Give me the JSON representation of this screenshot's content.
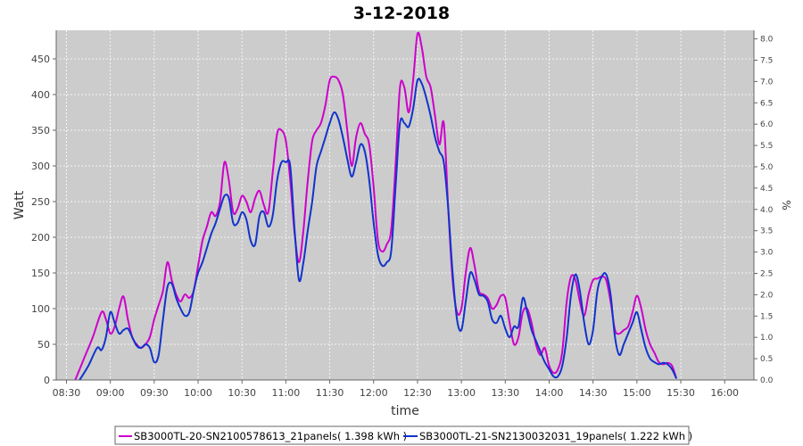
{
  "chart_data": {
    "type": "line",
    "title": "3-12-2018",
    "xlabel": "time",
    "ylabel": "Watt",
    "y2label": "%",
    "x_ticks": [
      "08:30",
      "09:00",
      "09:30",
      "10:00",
      "10:30",
      "11:00",
      "11:30",
      "12:00",
      "12:30",
      "13:00",
      "13:30",
      "14:00",
      "14:30",
      "15:00",
      "15:30",
      "16:00"
    ],
    "y_ticks": [
      "0",
      "50",
      "100",
      "150",
      "200",
      "250",
      "300",
      "350",
      "400",
      "450"
    ],
    "y2_ticks": [
      "0.0",
      "0.5",
      "1.0",
      "1.5",
      "2.0",
      "2.5",
      "3.0",
      "3.5",
      "4.0",
      "4.5",
      "5.0",
      "5.5",
      "6.0",
      "6.5",
      "7.0",
      "7.5",
      "8.0"
    ],
    "xlim": [
      "08:23",
      "16:20"
    ],
    "ylim": [
      0,
      490
    ],
    "y2lim": [
      0,
      8.2
    ],
    "grid": true,
    "legend_position": "bottom",
    "series": [
      {
        "name": "SB3000TL-20-SN2100578613_21panels( 1.398 kWh )",
        "color": "#cc00cc",
        "points": [
          [
            "08:36",
            0
          ],
          [
            "08:42",
            30
          ],
          [
            "08:48",
            60
          ],
          [
            "08:54",
            95
          ],
          [
            "08:57",
            85
          ],
          [
            "09:00",
            65
          ],
          [
            "09:03",
            75
          ],
          [
            "09:06",
            100
          ],
          [
            "09:09",
            117
          ],
          [
            "09:12",
            85
          ],
          [
            "09:15",
            60
          ],
          [
            "09:18",
            50
          ],
          [
            "09:21",
            45
          ],
          [
            "09:24",
            50
          ],
          [
            "09:27",
            60
          ],
          [
            "09:30",
            85
          ],
          [
            "09:33",
            105
          ],
          [
            "09:36",
            125
          ],
          [
            "09:39",
            165
          ],
          [
            "09:42",
            140
          ],
          [
            "09:45",
            120
          ],
          [
            "09:48",
            110
          ],
          [
            "09:51",
            120
          ],
          [
            "09:54",
            115
          ],
          [
            "09:57",
            125
          ],
          [
            "10:00",
            160
          ],
          [
            "10:03",
            195
          ],
          [
            "10:06",
            215
          ],
          [
            "10:09",
            235
          ],
          [
            "10:12",
            230
          ],
          [
            "10:15",
            250
          ],
          [
            "10:18",
            305
          ],
          [
            "10:21",
            280
          ],
          [
            "10:24",
            235
          ],
          [
            "10:27",
            240
          ],
          [
            "10:30",
            258
          ],
          [
            "10:33",
            250
          ],
          [
            "10:36",
            235
          ],
          [
            "10:39",
            255
          ],
          [
            "10:42",
            265
          ],
          [
            "10:45",
            245
          ],
          [
            "10:48",
            235
          ],
          [
            "10:51",
            290
          ],
          [
            "10:54",
            345
          ],
          [
            "10:57",
            350
          ],
          [
            "11:00",
            335
          ],
          [
            "11:03",
            280
          ],
          [
            "11:06",
            205
          ],
          [
            "11:09",
            165
          ],
          [
            "11:12",
            210
          ],
          [
            "11:15",
            280
          ],
          [
            "11:18",
            335
          ],
          [
            "11:21",
            350
          ],
          [
            "11:24",
            360
          ],
          [
            "11:27",
            385
          ],
          [
            "11:30",
            420
          ],
          [
            "11:33",
            425
          ],
          [
            "11:36",
            420
          ],
          [
            "11:39",
            400
          ],
          [
            "11:42",
            350
          ],
          [
            "11:45",
            300
          ],
          [
            "11:48",
            340
          ],
          [
            "11:51",
            360
          ],
          [
            "11:54",
            345
          ],
          [
            "11:57",
            330
          ],
          [
            "12:00",
            270
          ],
          [
            "12:03",
            195
          ],
          [
            "12:06",
            180
          ],
          [
            "12:09",
            190
          ],
          [
            "12:12",
            210
          ],
          [
            "12:15",
            300
          ],
          [
            "12:18",
            410
          ],
          [
            "12:21",
            410
          ],
          [
            "12:24",
            375
          ],
          [
            "12:27",
            420
          ],
          [
            "12:30",
            485
          ],
          [
            "12:33",
            465
          ],
          [
            "12:36",
            425
          ],
          [
            "12:39",
            410
          ],
          [
            "12:42",
            370
          ],
          [
            "12:45",
            330
          ],
          [
            "12:48",
            360
          ],
          [
            "12:51",
            240
          ],
          [
            "12:54",
            140
          ],
          [
            "12:57",
            95
          ],
          [
            "13:00",
            100
          ],
          [
            "13:03",
            150
          ],
          [
            "13:06",
            185
          ],
          [
            "13:09",
            160
          ],
          [
            "13:12",
            125
          ],
          [
            "13:15",
            120
          ],
          [
            "13:18",
            115
          ],
          [
            "13:21",
            100
          ],
          [
            "13:24",
            105
          ],
          [
            "13:27",
            118
          ],
          [
            "13:30",
            115
          ],
          [
            "13:33",
            80
          ],
          [
            "13:36",
            50
          ],
          [
            "13:39",
            60
          ],
          [
            "13:42",
            95
          ],
          [
            "13:45",
            100
          ],
          [
            "13:48",
            80
          ],
          [
            "13:51",
            50
          ],
          [
            "13:54",
            35
          ],
          [
            "13:57",
            45
          ],
          [
            "14:00",
            20
          ],
          [
            "14:03",
            10
          ],
          [
            "14:06",
            15
          ],
          [
            "14:09",
            40
          ],
          [
            "14:12",
            110
          ],
          [
            "14:15",
            145
          ],
          [
            "14:18",
            140
          ],
          [
            "14:21",
            110
          ],
          [
            "14:24",
            90
          ],
          [
            "14:27",
            120
          ],
          [
            "14:30",
            140
          ],
          [
            "14:33",
            142
          ],
          [
            "14:36",
            145
          ],
          [
            "14:39",
            140
          ],
          [
            "14:42",
            110
          ],
          [
            "14:45",
            70
          ],
          [
            "14:48",
            65
          ],
          [
            "14:51",
            70
          ],
          [
            "14:54",
            75
          ],
          [
            "14:57",
            95
          ],
          [
            "15:00",
            118
          ],
          [
            "15:03",
            100
          ],
          [
            "15:06",
            70
          ],
          [
            "15:09",
            50
          ],
          [
            "15:12",
            38
          ],
          [
            "15:15",
            25
          ],
          [
            "15:18",
            22
          ],
          [
            "15:21",
            24
          ],
          [
            "15:24",
            20
          ],
          [
            "15:27",
            2
          ]
        ]
      },
      {
        "name": "SB3000TL-21-SN2130032031_19panels( 1.222 kWh )",
        "color": "#1133cc",
        "points": [
          [
            "08:39",
            0
          ],
          [
            "08:45",
            20
          ],
          [
            "08:51",
            45
          ],
          [
            "08:54",
            42
          ],
          [
            "08:57",
            60
          ],
          [
            "09:00",
            95
          ],
          [
            "09:03",
            80
          ],
          [
            "09:06",
            65
          ],
          [
            "09:09",
            70
          ],
          [
            "09:12",
            72
          ],
          [
            "09:15",
            60
          ],
          [
            "09:18",
            48
          ],
          [
            "09:21",
            45
          ],
          [
            "09:24",
            50
          ],
          [
            "09:27",
            45
          ],
          [
            "09:30",
            25
          ],
          [
            "09:33",
            35
          ],
          [
            "09:36",
            85
          ],
          [
            "09:39",
            130
          ],
          [
            "09:42",
            135
          ],
          [
            "09:45",
            115
          ],
          [
            "09:48",
            100
          ],
          [
            "09:51",
            90
          ],
          [
            "09:54",
            95
          ],
          [
            "09:57",
            125
          ],
          [
            "10:00",
            150
          ],
          [
            "10:03",
            165
          ],
          [
            "10:06",
            185
          ],
          [
            "10:09",
            205
          ],
          [
            "10:12",
            220
          ],
          [
            "10:15",
            240
          ],
          [
            "10:18",
            258
          ],
          [
            "10:21",
            255
          ],
          [
            "10:24",
            220
          ],
          [
            "10:27",
            220
          ],
          [
            "10:30",
            235
          ],
          [
            "10:33",
            225
          ],
          [
            "10:36",
            195
          ],
          [
            "10:39",
            190
          ],
          [
            "10:42",
            230
          ],
          [
            "10:45",
            235
          ],
          [
            "10:48",
            215
          ],
          [
            "10:51",
            230
          ],
          [
            "10:54",
            280
          ],
          [
            "10:57",
            305
          ],
          [
            "11:00",
            305
          ],
          [
            "11:03",
            300
          ],
          [
            "11:06",
            210
          ],
          [
            "11:09",
            140
          ],
          [
            "11:12",
            165
          ],
          [
            "11:15",
            210
          ],
          [
            "11:18",
            250
          ],
          [
            "11:21",
            300
          ],
          [
            "11:24",
            320
          ],
          [
            "11:27",
            340
          ],
          [
            "11:30",
            360
          ],
          [
            "11:33",
            375
          ],
          [
            "11:36",
            365
          ],
          [
            "11:39",
            340
          ],
          [
            "11:42",
            310
          ],
          [
            "11:45",
            285
          ],
          [
            "11:48",
            305
          ],
          [
            "11:51",
            330
          ],
          [
            "11:54",
            320
          ],
          [
            "11:57",
            280
          ],
          [
            "12:00",
            220
          ],
          [
            "12:03",
            175
          ],
          [
            "12:06",
            160
          ],
          [
            "12:09",
            165
          ],
          [
            "12:12",
            180
          ],
          [
            "12:15",
            270
          ],
          [
            "12:18",
            360
          ],
          [
            "12:21",
            360
          ],
          [
            "12:24",
            355
          ],
          [
            "12:27",
            380
          ],
          [
            "12:30",
            420
          ],
          [
            "12:33",
            415
          ],
          [
            "12:36",
            395
          ],
          [
            "12:39",
            370
          ],
          [
            "12:42",
            340
          ],
          [
            "12:45",
            320
          ],
          [
            "12:48",
            305
          ],
          [
            "12:51",
            240
          ],
          [
            "12:54",
            150
          ],
          [
            "12:57",
            85
          ],
          [
            "13:00",
            70
          ],
          [
            "13:03",
            110
          ],
          [
            "13:06",
            150
          ],
          [
            "13:09",
            140
          ],
          [
            "13:12",
            120
          ],
          [
            "13:15",
            118
          ],
          [
            "13:18",
            110
          ],
          [
            "13:21",
            85
          ],
          [
            "13:24",
            80
          ],
          [
            "13:27",
            90
          ],
          [
            "13:30",
            72
          ],
          [
            "13:33",
            60
          ],
          [
            "13:36",
            75
          ],
          [
            "13:39",
            75
          ],
          [
            "13:42",
            115
          ],
          [
            "13:45",
            95
          ],
          [
            "13:48",
            70
          ],
          [
            "13:51",
            55
          ],
          [
            "13:54",
            40
          ],
          [
            "13:57",
            25
          ],
          [
            "14:00",
            15
          ],
          [
            "14:03",
            5
          ],
          [
            "14:06",
            5
          ],
          [
            "14:09",
            20
          ],
          [
            "14:12",
            60
          ],
          [
            "14:15",
            120
          ],
          [
            "14:18",
            148
          ],
          [
            "14:21",
            125
          ],
          [
            "14:24",
            80
          ],
          [
            "14:27",
            50
          ],
          [
            "14:30",
            70
          ],
          [
            "14:33",
            125
          ],
          [
            "14:36",
            145
          ],
          [
            "14:39",
            148
          ],
          [
            "14:42",
            120
          ],
          [
            "14:45",
            60
          ],
          [
            "14:48",
            35
          ],
          [
            "14:51",
            50
          ],
          [
            "14:54",
            65
          ],
          [
            "14:57",
            80
          ],
          [
            "15:00",
            95
          ],
          [
            "15:03",
            70
          ],
          [
            "15:06",
            45
          ],
          [
            "15:09",
            30
          ],
          [
            "15:12",
            25
          ],
          [
            "15:15",
            22
          ],
          [
            "15:18",
            24
          ],
          [
            "15:21",
            22
          ],
          [
            "15:24",
            15
          ],
          [
            "15:27",
            2
          ]
        ]
      }
    ]
  }
}
